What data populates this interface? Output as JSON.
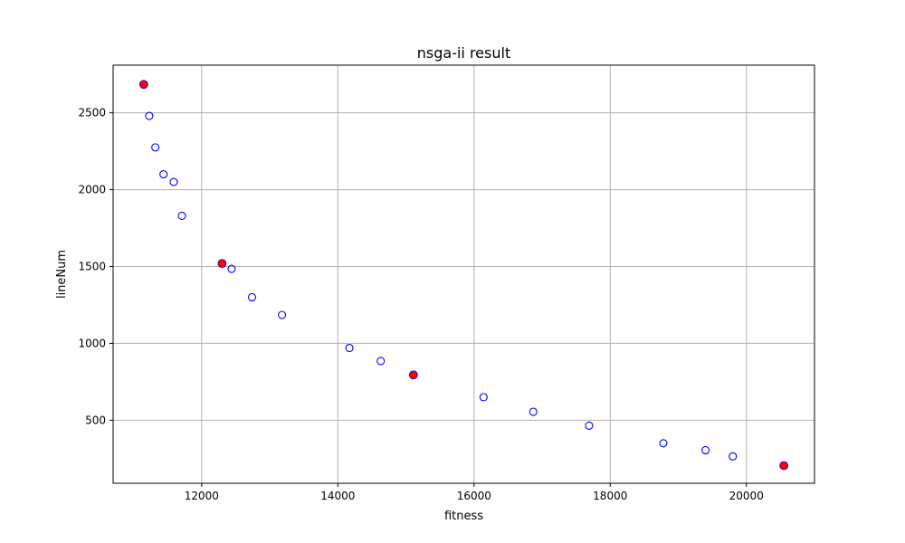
{
  "chart_data": {
    "type": "scatter",
    "title": "nsga-ii result",
    "xlabel": "fitness",
    "ylabel": "lineNum",
    "xlim": [
      10700,
      21000
    ],
    "ylim": [
      90,
      2810
    ],
    "grid": true,
    "x_ticks": [
      12000,
      14000,
      16000,
      18000,
      20000
    ],
    "y_ticks": [
      500,
      1000,
      1500,
      2000,
      2500
    ],
    "series": [
      {
        "marker": "open-circle",
        "color": "#0000ff",
        "points": [
          {
            "x": 11230,
            "y": 2480
          },
          {
            "x": 11320,
            "y": 2275
          },
          {
            "x": 11440,
            "y": 2100
          },
          {
            "x": 11590,
            "y": 2050
          },
          {
            "x": 11710,
            "y": 1830
          },
          {
            "x": 12440,
            "y": 1485
          },
          {
            "x": 12740,
            "y": 1300
          },
          {
            "x": 13180,
            "y": 1185
          },
          {
            "x": 14170,
            "y": 970
          },
          {
            "x": 14630,
            "y": 885
          },
          {
            "x": 16140,
            "y": 650
          },
          {
            "x": 16870,
            "y": 555
          },
          {
            "x": 17690,
            "y": 465
          },
          {
            "x": 18780,
            "y": 350
          },
          {
            "x": 19400,
            "y": 305
          },
          {
            "x": 19800,
            "y": 265
          }
        ]
      },
      {
        "marker": "filled-circle",
        "color": "#ff0000",
        "edge_color": "#0000ff",
        "points": [
          {
            "x": 11150,
            "y": 2685
          },
          {
            "x": 12300,
            "y": 1520
          },
          {
            "x": 15110,
            "y": 795
          },
          {
            "x": 20550,
            "y": 205
          }
        ]
      }
    ]
  },
  "colors": {
    "grid": "#b0b0b0",
    "axes": "#000000",
    "background": "#ffffff"
  }
}
